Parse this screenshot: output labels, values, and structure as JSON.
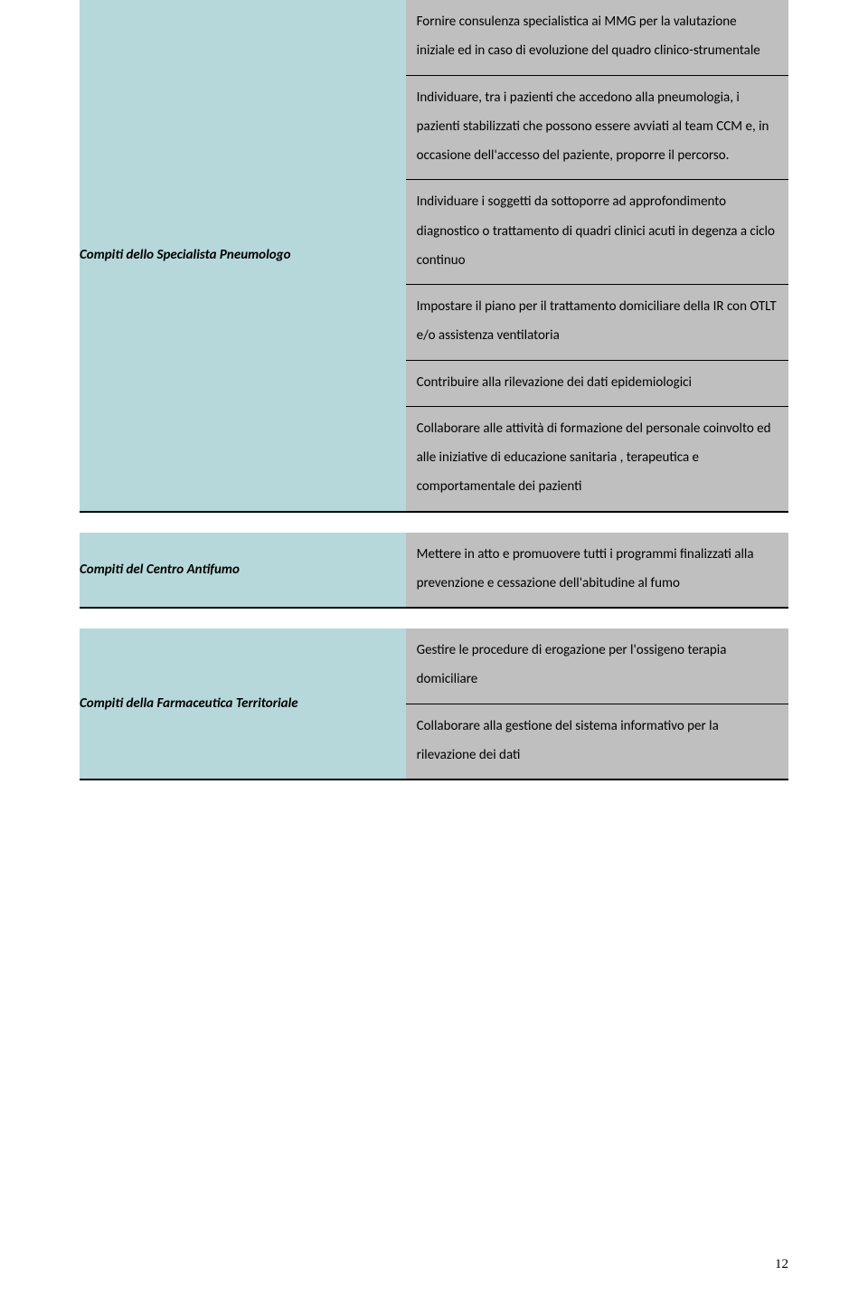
{
  "sections": [
    {
      "label": "Compiti dello Specialista Pneumologo",
      "items": [
        "Fornire consulenza specialistica ai MMG per la valutazione iniziale ed in caso di evoluzione del quadro clinico-strumentale",
        "Individuare, tra i pazienti che accedono alla pneumologia, i pazienti stabilizzati che possono essere avviati al team CCM  e, in occasione dell'accesso del paziente, proporre il percorso.",
        "Individuare i soggetti da sottoporre ad approfondimento diagnostico o trattamento di quadri clinici acuti in degenza a ciclo continuo",
        "Impostare il piano per il trattamento  domiciliare della IR con OTLT e/o assistenza ventilatoria",
        "Contribuire alla rilevazione dei dati epidemiologici",
        "Collaborare alle attività di formazione del personale coinvolto ed alle iniziative di educazione sanitaria , terapeutica e comportamentale dei pazienti"
      ]
    },
    {
      "label": "Compiti del Centro Antifumo",
      "items": [
        "Mettere in atto e promuovere tutti i programmi finalizzati alla  prevenzione e cessazione dell'abitudine al fumo"
      ]
    },
    {
      "label": "Compiti della Farmaceutica Territoriale",
      "items": [
        "Gestire le procedure di erogazione per l'ossigeno terapia domiciliare",
        "Collaborare alla gestione del sistema informativo per la rilevazione dei dati"
      ]
    }
  ],
  "page_number": "12",
  "colors": {
    "label_bg": "#b7d8da",
    "content_bg": "#bfbfbf",
    "border": "#000000",
    "page_bg": "#ffffff"
  }
}
